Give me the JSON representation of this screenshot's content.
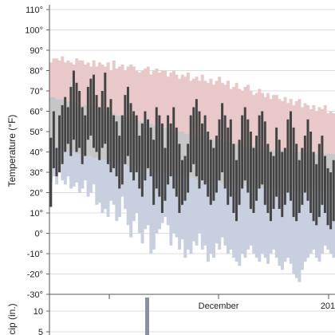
{
  "chart_data": [
    {
      "type": "bar",
      "ylabel": "Temperature (°F)",
      "ylim": [
        -30,
        110
      ],
      "y_ticks": [
        "110°",
        "100°",
        "90°",
        "80°",
        "70°",
        "60°",
        "50°",
        "40°",
        "30°",
        "20°",
        "10°",
        "0°",
        "-10°",
        "-20°",
        "-30°"
      ],
      "y_tick_values": [
        110,
        100,
        90,
        80,
        70,
        60,
        50,
        40,
        30,
        20,
        10,
        0,
        -10,
        -20,
        -30
      ],
      "grid": true,
      "colors": {
        "record_range": "#e8c8c8",
        "normal_range": "#c6c6c6",
        "record_low_band": "#c8d0e0",
        "actual_range": "#444444"
      },
      "series": [
        {
          "key": "record_high",
          "values": [
            84,
            86,
            86,
            85,
            87,
            84,
            85,
            84,
            83,
            86,
            85,
            85,
            83,
            84,
            82,
            85,
            82,
            84,
            83,
            82,
            84,
            80,
            85,
            81,
            82,
            83,
            80,
            82,
            83,
            82,
            80,
            79,
            80,
            81,
            82,
            78,
            80,
            81,
            79,
            80,
            80,
            77,
            79,
            80,
            78,
            76,
            78,
            77,
            79,
            75,
            76,
            77,
            75,
            78,
            75,
            74,
            76,
            73,
            75,
            77,
            74,
            73,
            75,
            71,
            72,
            74,
            71,
            70,
            72,
            73,
            70,
            68,
            69,
            71,
            69,
            67,
            69,
            66,
            68,
            68,
            66,
            65,
            67,
            64,
            66,
            63,
            65,
            66,
            62,
            64,
            63,
            61,
            63,
            60,
            62,
            61,
            63,
            59,
            60,
            59
          ]
        },
        {
          "key": "normal_high",
          "values": [
            67,
            67,
            66,
            66,
            66,
            65,
            65,
            65,
            64,
            64,
            64,
            63,
            63,
            62,
            62,
            62,
            61,
            61,
            60,
            60,
            60,
            59,
            59,
            58,
            58,
            58,
            57,
            57,
            56,
            56,
            56,
            55,
            55,
            54,
            54,
            54,
            53,
            53,
            52,
            52,
            52,
            51,
            51,
            51,
            50,
            50,
            50,
            49,
            49,
            49,
            48,
            48,
            48,
            47,
            47,
            47,
            46,
            46,
            46,
            46,
            45,
            45,
            45,
            44,
            44,
            44,
            44,
            43,
            43,
            43,
            43,
            43,
            42,
            42,
            42,
            42,
            42,
            41,
            41,
            41,
            41,
            41,
            41,
            40,
            40,
            40,
            40,
            40,
            40,
            40,
            39,
            39,
            39,
            39,
            39,
            39,
            39,
            39,
            39,
            39
          ]
        },
        {
          "key": "normal_low",
          "values": [
            42,
            42,
            42,
            41,
            41,
            41,
            40,
            40,
            40,
            39,
            39,
            39,
            38,
            38,
            38,
            37,
            37,
            37,
            36,
            36,
            36,
            35,
            35,
            35,
            34,
            34,
            34,
            33,
            33,
            33,
            32,
            32,
            32,
            31,
            31,
            31,
            30,
            30,
            30,
            30,
            29,
            29,
            29,
            28,
            28,
            28,
            28,
            27,
            27,
            27,
            27,
            26,
            26,
            26,
            26,
            25,
            25,
            25,
            25,
            25,
            24,
            24,
            24,
            24,
            24,
            24,
            23,
            23,
            23,
            23,
            23,
            23,
            22,
            22,
            22,
            22,
            22,
            22,
            22,
            22,
            21,
            21,
            21,
            21,
            21,
            21,
            21,
            21,
            21,
            21,
            21,
            21,
            21,
            21,
            21,
            21,
            21,
            21,
            21,
            21
          ]
        },
        {
          "key": "record_low",
          "values": [
            25,
            28,
            24,
            30,
            26,
            24,
            28,
            22,
            23,
            25,
            20,
            22,
            26,
            18,
            20,
            24,
            14,
            15,
            10,
            12,
            8,
            16,
            14,
            6,
            8,
            18,
            12,
            4,
            -2,
            6,
            10,
            0,
            -5,
            2,
            4,
            -10,
            -8,
            0,
            2,
            5,
            8,
            4,
            -6,
            0,
            -2,
            -8,
            -3,
            -12,
            -8,
            -10,
            -4,
            -6,
            0,
            -8,
            -6,
            -14,
            -10,
            -12,
            -5,
            -8,
            -2,
            -6,
            -10,
            -8,
            -12,
            -14,
            -16,
            -10,
            -12,
            -8,
            -6,
            -10,
            -12,
            -14,
            -10,
            -12,
            -15,
            -10,
            -8,
            -12,
            -16,
            -18,
            -14,
            -12,
            -15,
            -20,
            -22,
            -24,
            -18,
            -14,
            -12,
            -10,
            -8,
            -12,
            -14,
            -10,
            -6,
            -8,
            -10,
            -12
          ]
        },
        {
          "key": "actual_high",
          "values": [
            47,
            60,
            42,
            58,
            63,
            67,
            62,
            72,
            80,
            74,
            70,
            62,
            58,
            72,
            76,
            78,
            68,
            62,
            70,
            79,
            62,
            66,
            58,
            55,
            48,
            58,
            68,
            72,
            64,
            60,
            58,
            48,
            54,
            60,
            56,
            52,
            46,
            62,
            58,
            54,
            42,
            58,
            54,
            62,
            52,
            44,
            36,
            38,
            44,
            58,
            62,
            66,
            60,
            54,
            58,
            50,
            46,
            42,
            48,
            56,
            64,
            58,
            52,
            56,
            44,
            36,
            46,
            58,
            62,
            56,
            50,
            42,
            48,
            58,
            60,
            55,
            44,
            40,
            38,
            52,
            46,
            40,
            42,
            56,
            60,
            52,
            44,
            36,
            42,
            48,
            56,
            50,
            40,
            34,
            44,
            48,
            38,
            32,
            30,
            36
          ]
        },
        {
          "key": "actual_low",
          "values": [
            13,
            32,
            28,
            30,
            34,
            40,
            44,
            38,
            46,
            40,
            42,
            34,
            38,
            46,
            48,
            42,
            40,
            36,
            42,
            44,
            34,
            30,
            32,
            28,
            22,
            24,
            34,
            38,
            30,
            26,
            30,
            22,
            18,
            26,
            32,
            28,
            14,
            22,
            18,
            10,
            16,
            24,
            28,
            22,
            18,
            10,
            14,
            16,
            20,
            30,
            34,
            28,
            22,
            26,
            24,
            18,
            14,
            16,
            20,
            26,
            30,
            22,
            14,
            18,
            10,
            6,
            14,
            22,
            26,
            20,
            12,
            10,
            16,
            22,
            24,
            14,
            10,
            6,
            12,
            18,
            12,
            8,
            14,
            20,
            16,
            8,
            6,
            10,
            14,
            20,
            16,
            10,
            6,
            4,
            8,
            14,
            10,
            4,
            2,
            6
          ]
        }
      ]
    },
    {
      "type": "bar",
      "ylabel": "cip (in.)",
      "y_ticks": [
        "10",
        "5"
      ],
      "y_tick_values": [
        10,
        5
      ],
      "x_ticks": [
        "December",
        "201"
      ],
      "grid": true,
      "colors": {
        "precip": "#8a8fa8"
      }
    }
  ]
}
